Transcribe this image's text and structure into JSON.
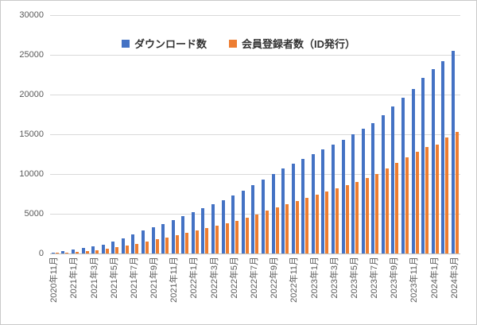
{
  "chart_data": {
    "type": "bar",
    "title": "",
    "xlabel": "",
    "ylabel": "",
    "ylim": [
      0,
      30000
    ],
    "y_ticks": [
      0,
      5000,
      10000,
      15000,
      20000,
      25000,
      30000
    ],
    "grid": true,
    "legend_position": "top",
    "x_label_every": 2,
    "categories": [
      "2020年11月",
      "2020年12月",
      "2021年1月",
      "2021年2月",
      "2021年3月",
      "2021年4月",
      "2021年5月",
      "2021年6月",
      "2021年7月",
      "2021年8月",
      "2021年9月",
      "2021年10月",
      "2021年11月",
      "2021年12月",
      "2022年1月",
      "2022年2月",
      "2022年3月",
      "2022年4月",
      "2022年5月",
      "2022年6月",
      "2022年7月",
      "2022年8月",
      "2022年9月",
      "2022年10月",
      "2022年11月",
      "2022年12月",
      "2023年1月",
      "2023年2月",
      "2023年3月",
      "2023年4月",
      "2023年5月",
      "2023年6月",
      "2023年7月",
      "2023年8月",
      "2023年9月",
      "2023年10月",
      "2023年11月",
      "2023年12月",
      "2024年1月",
      "2024年2月",
      "2024年3月"
    ],
    "series": [
      {
        "name": "ダウンロード数",
        "color": "#4472C4",
        "values": [
          150,
          300,
          500,
          700,
          900,
          1100,
          1500,
          1900,
          2400,
          2900,
          3300,
          3700,
          4200,
          4700,
          5200,
          5700,
          6200,
          6700,
          7300,
          7900,
          8600,
          9300,
          10000,
          10700,
          11300,
          11900,
          12500,
          13100,
          13700,
          14300,
          15000,
          15700,
          16400,
          17400,
          18500,
          19600,
          20700,
          22100,
          23200,
          24200,
          25500
        ]
      },
      {
        "name": "会員登録者数（ID発行）",
        "color": "#ED7D31",
        "values": [
          80,
          150,
          250,
          350,
          450,
          600,
          800,
          1000,
          1250,
          1550,
          1800,
          2050,
          2350,
          2650,
          2950,
          3250,
          3550,
          3850,
          4150,
          4500,
          4900,
          5400,
          5800,
          6200,
          6600,
          7000,
          7400,
          7800,
          8200,
          8600,
          9000,
          9500,
          10000,
          10700,
          11400,
          12100,
          12800,
          13400,
          13700,
          14600,
          15300
        ]
      }
    ]
  }
}
